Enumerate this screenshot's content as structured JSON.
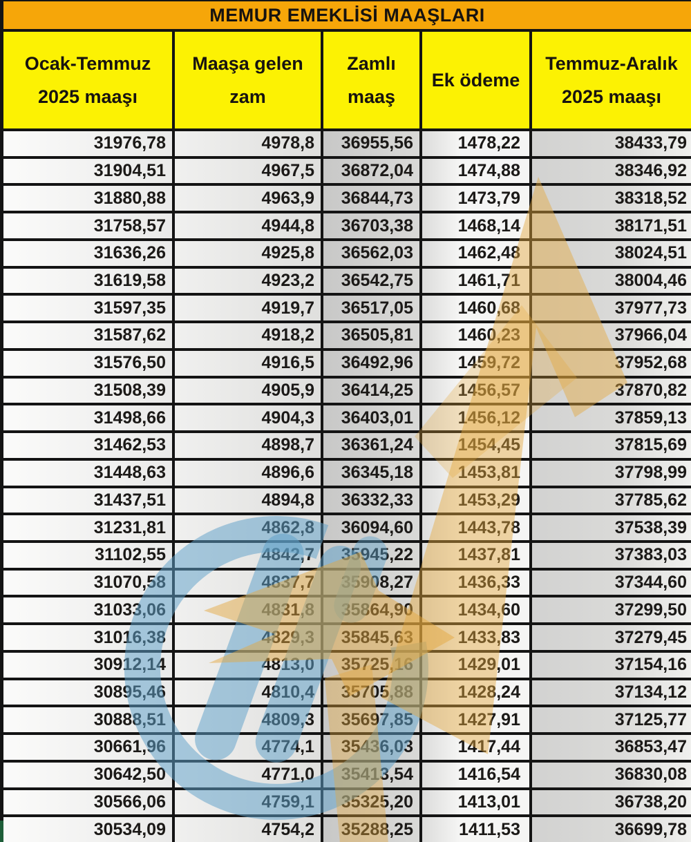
{
  "title": "MEMUR EMEKLİSİ MAAŞLARI",
  "header": {
    "columns": [
      {
        "line1": "Ocak-Temmuz",
        "line2": "2025 maaşı"
      },
      {
        "line1": "Maaşa gelen",
        "line2": "zam"
      },
      {
        "line1": "Zamlı",
        "line2": "maaş"
      },
      {
        "line1": "Ek ödeme",
        "line2": ""
      },
      {
        "line1": "Temmuz-Aralık",
        "line2": "2025 maaşı"
      }
    ]
  },
  "table": {
    "rows": [
      [
        "31976,78",
        "4978,8",
        "36955,56",
        "1478,22",
        "38433,79"
      ],
      [
        "31904,51",
        "4967,5",
        "36872,04",
        "1474,88",
        "38346,92"
      ],
      [
        "31880,88",
        "4963,9",
        "36844,73",
        "1473,79",
        "38318,52"
      ],
      [
        "31758,57",
        "4944,8",
        "36703,38",
        "1468,14",
        "38171,51"
      ],
      [
        "31636,26",
        "4925,8",
        "36562,03",
        "1462,48",
        "38024,51"
      ],
      [
        "31619,58",
        "4923,2",
        "36542,75",
        "1461,71",
        "38004,46"
      ],
      [
        "31597,35",
        "4919,7",
        "36517,05",
        "1460,68",
        "37977,73"
      ],
      [
        "31587,62",
        "4918,2",
        "36505,81",
        "1460,23",
        "37966,04"
      ],
      [
        "31576,50",
        "4916,5",
        "36492,96",
        "1459,72",
        "37952,68"
      ],
      [
        "31508,39",
        "4905,9",
        "36414,25",
        "1456,57",
        "37870,82"
      ],
      [
        "31498,66",
        "4904,3",
        "36403,01",
        "1456,12",
        "37859,13"
      ],
      [
        "31462,53",
        "4898,7",
        "36361,24",
        "1454,45",
        "37815,69"
      ],
      [
        "31448,63",
        "4896,6",
        "36345,18",
        "1453,81",
        "37798,99"
      ],
      [
        "31437,51",
        "4894,8",
        "36332,33",
        "1453,29",
        "37785,62"
      ],
      [
        "31231,81",
        "4862,8",
        "36094,60",
        "1443,78",
        "37538,39"
      ],
      [
        "31102,55",
        "4842,7",
        "35945,22",
        "1437,81",
        "37383,03"
      ],
      [
        "31070,58",
        "4837,7",
        "35908,27",
        "1436,33",
        "37344,60"
      ],
      [
        "31033,06",
        "4831,8",
        "35864,90",
        "1434,60",
        "37299,50"
      ],
      [
        "31016,38",
        "4829,3",
        "35845,63",
        "1433,83",
        "37279,45"
      ],
      [
        "30912,14",
        "4813,0",
        "35725,16",
        "1429,01",
        "37154,16"
      ],
      [
        "30895,46",
        "4810,4",
        "35705,88",
        "1428,24",
        "37134,12"
      ],
      [
        "30888,51",
        "4809,3",
        "35697,85",
        "1427,91",
        "37125,77"
      ],
      [
        "30661,96",
        "4774,1",
        "35436,03",
        "1417,44",
        "36853,47"
      ],
      [
        "30642,50",
        "4771,0",
        "35413,54",
        "1416,54",
        "36830,08"
      ],
      [
        "30566,06",
        "4759,1",
        "35325,20",
        "1413,01",
        "36738,20"
      ],
      [
        "30534,09",
        "4754,2",
        "35288,25",
        "1411,53",
        "36699,78"
      ]
    ]
  },
  "colors": {
    "title_bg": "#F6A609",
    "header_bg": "#FCF203",
    "border": "#141414",
    "watermark_blue": "#60A2C9",
    "watermark_tan": "#E4A83E"
  },
  "watermark": {
    "name": "ntv-logo-watermark"
  }
}
